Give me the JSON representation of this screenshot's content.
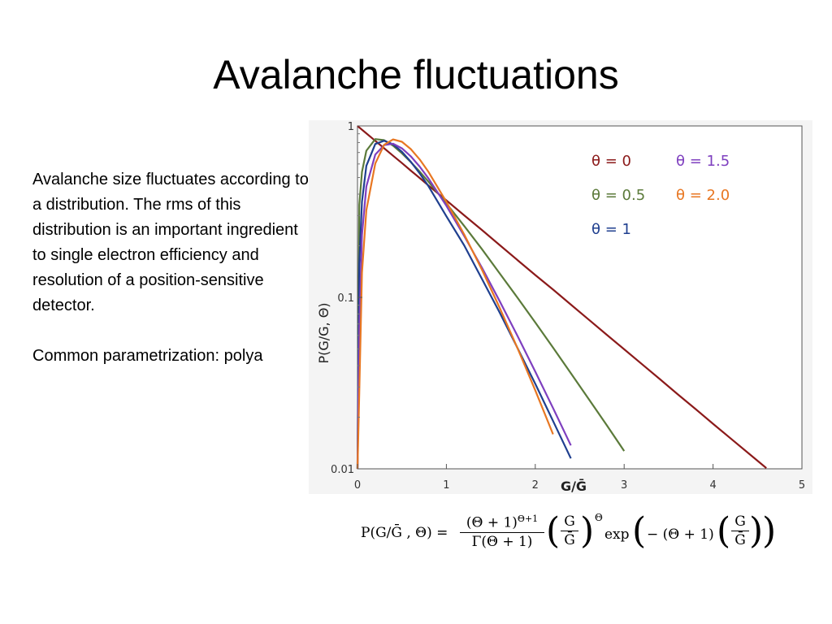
{
  "slide": {
    "title": "Avalanche fluctuations",
    "paragraph1": "Avalanche size fluctuates according to a distribution. The rms of this distribution is an important ingredient to single electron efficiency and resolution of a position-sensitive detector.",
    "paragraph2": "Common parametrization: polya"
  },
  "formula": {
    "lhs": "P(G/Ḡ , Θ) =",
    "frac1_num": "(Θ + 1)",
    "frac1_num_exp": "Θ+1",
    "frac1_den": "Γ(Θ + 1)",
    "frac2_num": "G",
    "frac2_den": "Ḡ",
    "power": "Θ",
    "exp_text": "exp",
    "minus_text": "− (Θ + 1)",
    "frac3_num": "G",
    "frac3_den": "Ḡ"
  },
  "chart_data": {
    "type": "line",
    "xlabel": "G/Ḡ",
    "ylabel": "P(G/G, Θ)",
    "xlim": [
      0,
      5
    ],
    "ylim": [
      0.01,
      1
    ],
    "yscale": "log",
    "x_ticks": [
      "0",
      "1",
      "2",
      "3",
      "4",
      "5"
    ],
    "y_ticks": [
      "0.01",
      "0.1",
      "1"
    ],
    "grid": false,
    "legend_placement": "top-right",
    "x": [
      0,
      0.02,
      0.05,
      0.1,
      0.2,
      0.3,
      0.4,
      0.5,
      0.6,
      0.7,
      0.8,
      1.0,
      1.2,
      1.4,
      1.6,
      1.8,
      2.0,
      2.2,
      2.4,
      2.6,
      2.8,
      3.0,
      3.2,
      3.4,
      3.6,
      3.8,
      4.0,
      4.2,
      4.4,
      4.6
    ],
    "series": [
      {
        "name": "θ = 0",
        "color": "#8b1a1a",
        "values": [
          1.0,
          0.98,
          0.951,
          0.905,
          0.819,
          0.741,
          0.67,
          0.607,
          0.549,
          0.497,
          0.449,
          0.368,
          0.301,
          0.247,
          0.202,
          0.165,
          0.135,
          0.111,
          0.0907,
          0.0743,
          0.0608,
          0.0498,
          0.0408,
          0.0334,
          0.0273,
          0.0224,
          0.0183,
          0.015,
          0.0123,
          0.0101
        ]
      },
      {
        "name": "θ = 0.5",
        "color": "#5b7a3a",
        "values": [
          0,
          0.347,
          0.539,
          0.717,
          0.838,
          0.826,
          0.767,
          0.692,
          0.615,
          0.541,
          0.472,
          0.353,
          0.261,
          0.191,
          0.138,
          0.0996,
          0.0714,
          0.0509,
          0.0361,
          0.0256,
          0.0181,
          0.0127,
          null,
          null,
          null,
          null,
          null,
          null,
          null,
          null
        ]
      },
      {
        "name": "θ = 1",
        "color": "#1f3f8f",
        "values": [
          0,
          0.157,
          0.362,
          0.585,
          0.785,
          0.82,
          0.781,
          0.707,
          0.618,
          0.528,
          0.444,
          0.297,
          0.201,
          0.128,
          0.0815,
          0.0507,
          0.0313,
          0.019,
          0.0115,
          null,
          null,
          null,
          null,
          null,
          null,
          null,
          null,
          null,
          null,
          null
        ]
      },
      {
        "name": "θ = 1.5",
        "color": "#7e3fbf",
        "values": [
          0,
          0.067,
          0.231,
          0.444,
          0.681,
          0.773,
          0.787,
          0.74,
          0.665,
          0.579,
          0.493,
          0.342,
          0.228,
          0.149,
          0.095,
          0.0596,
          0.0369,
          0.0226,
          0.0137,
          null,
          null,
          null,
          null,
          null,
          null,
          null,
          null,
          null,
          null,
          null
        ]
      },
      {
        "name": "θ = 2.0",
        "color": "#e87722",
        "values": [
          0,
          0.028,
          0.139,
          0.323,
          0.604,
          0.776,
          0.834,
          0.808,
          0.733,
          0.637,
          0.538,
          0.361,
          0.233,
          0.145,
          0.0869,
          0.0506,
          0.0287,
          0.0159,
          null,
          null,
          null,
          null,
          null,
          null,
          null,
          null,
          null,
          null,
          null,
          null
        ]
      }
    ]
  }
}
